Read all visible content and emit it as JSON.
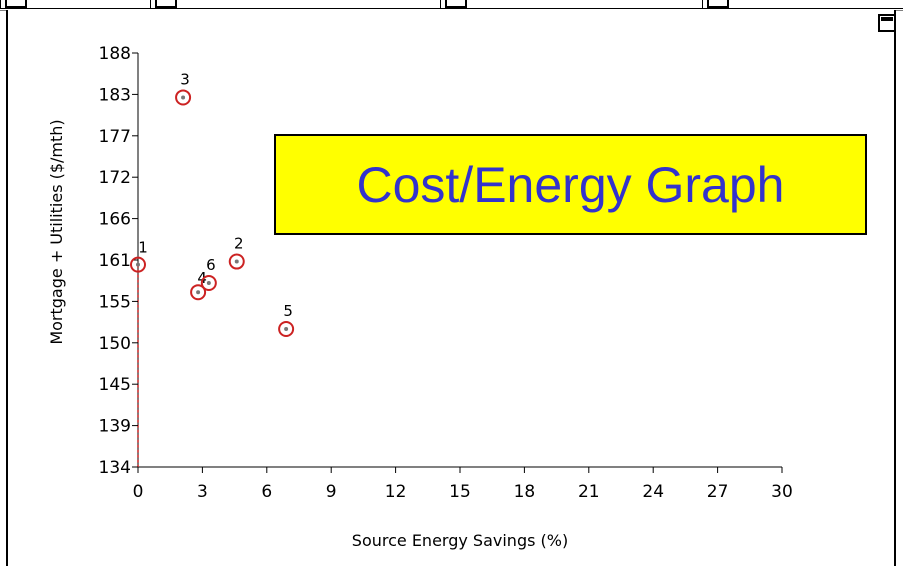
{
  "chart_data": {
    "type": "scatter",
    "title": "Cost/Energy Graph",
    "xlabel": "Source Energy Savings (%)",
    "ylabel": "Mortgage + Utilities ($/mth)",
    "xlim": [
      0,
      30
    ],
    "ylim": [
      134,
      188
    ],
    "x_ticks": [
      "0",
      "3",
      "6",
      "9",
      "12",
      "15",
      "18",
      "21",
      "24",
      "27",
      "30"
    ],
    "y_ticks": [
      "188",
      "183",
      "177",
      "172",
      "166",
      "161",
      "155",
      "150",
      "145",
      "139",
      "134"
    ],
    "points": [
      {
        "label": "1",
        "x": 0.0,
        "y": 160.4
      },
      {
        "label": "2",
        "x": 4.6,
        "y": 160.8
      },
      {
        "label": "3",
        "x": 2.1,
        "y": 182.2
      },
      {
        "label": "4",
        "x": 2.8,
        "y": 156.8
      },
      {
        "label": "5",
        "x": 6.9,
        "y": 152.0
      },
      {
        "label": "6",
        "x": 3.3,
        "y": 158.0
      }
    ],
    "grid": false,
    "legend": "top-right",
    "colors": {
      "marker": "#cc2222",
      "title_text": "#3333cc",
      "title_bg": "#ffff00"
    }
  }
}
